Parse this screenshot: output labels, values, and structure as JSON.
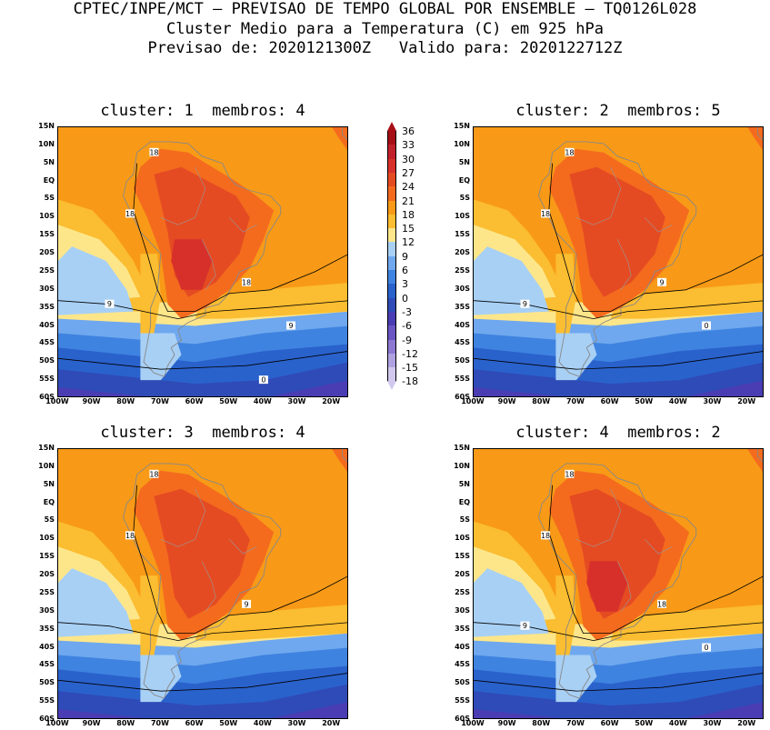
{
  "header": {
    "line1": "CPTEC/INPE/MCT – PREVISAO DE TEMPO GLOBAL POR ENSEMBLE – TQ0126L028",
    "line2": "Cluster Medio para a Temperatura (C) em 925 hPa",
    "line3": "Previsao de: 2020121300Z   Valido para: 2020122712Z"
  },
  "panels": [
    {
      "title": "cluster: 1  membros: 4",
      "contour_labels": [
        "18",
        "18",
        "18",
        "9",
        "9",
        "0"
      ],
      "warm_core": 30
    },
    {
      "title": "cluster: 2  membros: 5",
      "contour_labels": [
        "18",
        "18",
        "9",
        "9",
        "0"
      ],
      "warm_core": 27
    },
    {
      "title": "cluster: 3  membros: 4",
      "contour_labels": [
        "18",
        "18",
        "9"
      ],
      "warm_core": 27
    },
    {
      "title": "cluster: 4  membros: 2",
      "contour_labels": [
        "18",
        "18",
        "18",
        "9",
        "0"
      ],
      "warm_core": 30
    }
  ],
  "lat_labels": [
    "15N",
    "10N",
    "5N",
    "EQ",
    "5S",
    "10S",
    "15S",
    "20S",
    "25S",
    "30S",
    "35S",
    "40S",
    "45S",
    "50S",
    "55S",
    "60S"
  ],
  "lon_labels": [
    "100W",
    "90W",
    "80W",
    "70W",
    "60W",
    "50W",
    "40W",
    "30W",
    "20W"
  ],
  "colorbar": {
    "labels": [
      "36",
      "33",
      "30",
      "27",
      "24",
      "21",
      "18",
      "15",
      "12",
      "9",
      "6",
      "3",
      "0",
      "-3",
      "-6",
      "-9",
      "-12",
      "-15",
      "-18"
    ],
    "colors": [
      "#a50f15",
      "#c0202a",
      "#d7302a",
      "#e54b22",
      "#f46b1e",
      "#f89a17",
      "#fbbd31",
      "#fde68a",
      "#a8d0f5",
      "#6fa8ee",
      "#3f83e0",
      "#2a62cc",
      "#2f4bb7",
      "#4a3cb2",
      "#6a55c2",
      "#8d78d2",
      "#b0a1e0",
      "#d2c8ee"
    ]
  }
}
